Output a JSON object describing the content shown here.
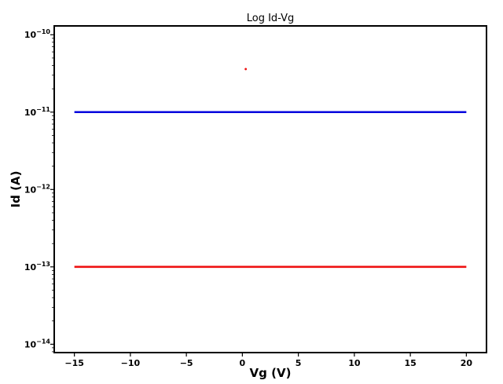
{
  "chart_data": {
    "type": "line",
    "title": "Log Id-Vg",
    "xlabel": "Vg (V)",
    "ylabel": "Id (A)",
    "x_scale": "linear",
    "y_scale": "log",
    "xlim": [
      -16.8,
      21.8
    ],
    "ylim": [
      7.8e-15,
      1.3e-10
    ],
    "x_ticks": [
      -15,
      -10,
      -5,
      0,
      5,
      10,
      15,
      20
    ],
    "x_tick_labels": [
      "−15",
      "−10",
      "−5",
      "0",
      "5",
      "10",
      "15",
      "20"
    ],
    "y_ticks": [
      1e-10,
      1e-11,
      1e-12,
      1e-13,
      1e-14
    ],
    "y_tick_labels": [
      {
        "base": "10",
        "exp": "−10"
      },
      {
        "base": "10",
        "exp": "−11"
      },
      {
        "base": "10",
        "exp": "−12"
      },
      {
        "base": "10",
        "exp": "−13"
      },
      {
        "base": "10",
        "exp": "−14"
      }
    ],
    "grid": false,
    "series": [
      {
        "color": "#0000dd",
        "x": [
          -15,
          20
        ],
        "y": [
          1e-11,
          1e-11
        ],
        "style": "line"
      },
      {
        "color": "#ee1111",
        "x": [
          -15,
          20
        ],
        "y": [
          1e-13,
          1e-13
        ],
        "style": "line"
      },
      {
        "color": "#ee1111",
        "x": [
          0.3
        ],
        "y": [
          3.6e-11
        ],
        "style": "point"
      }
    ]
  }
}
